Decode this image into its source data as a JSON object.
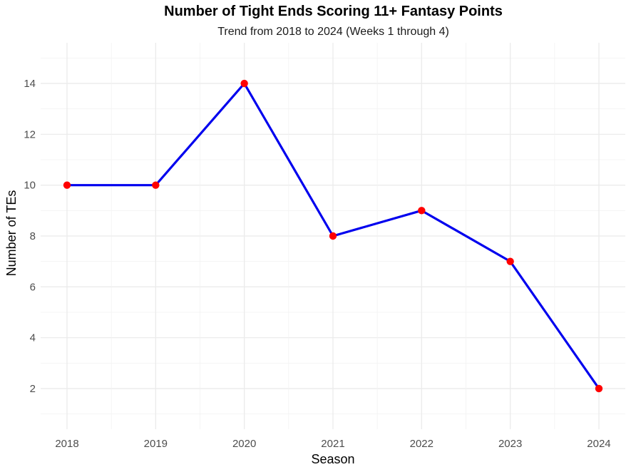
{
  "chart_data": {
    "type": "line",
    "title": "Number of Tight Ends Scoring 11+ Fantasy Points",
    "subtitle": "Trend from 2018 to 2024 (Weeks 1 through 4)",
    "xlabel": "Season",
    "ylabel": "Number of TEs",
    "categories": [
      "2018",
      "2019",
      "2020",
      "2021",
      "2022",
      "2023",
      "2024"
    ],
    "values": [
      10,
      10,
      14,
      8,
      9,
      7,
      2
    ],
    "ylim": [
      0.4,
      15.6
    ],
    "yticks": [
      "2",
      "4",
      "6",
      "8",
      "10",
      "12",
      "14"
    ],
    "grid": true,
    "line_color": "#0000ee",
    "point_color": "#ff0000"
  }
}
